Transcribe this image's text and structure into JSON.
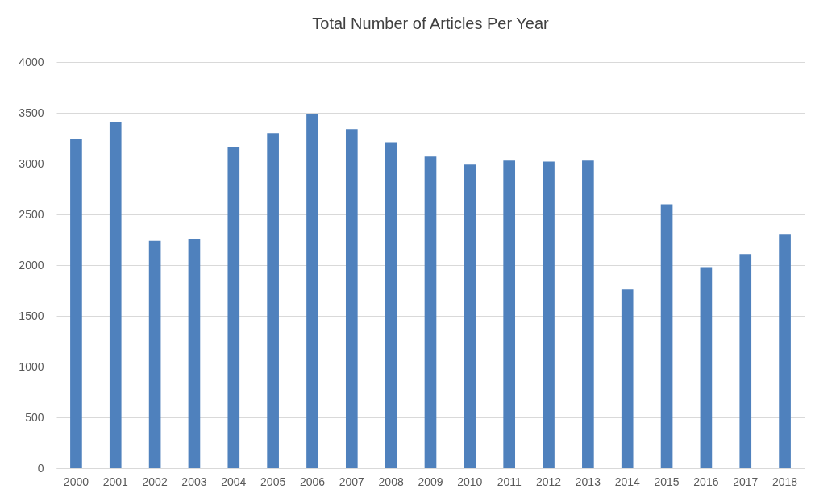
{
  "chart_data": {
    "type": "bar",
    "title": "Total Number of Articles Per Year",
    "categories": [
      "2000",
      "2001",
      "2002",
      "2003",
      "2004",
      "2005",
      "2006",
      "2007",
      "2008",
      "2009",
      "2010",
      "2011",
      "2012",
      "2013",
      "2014",
      "2015",
      "2016",
      "2017",
      "2018"
    ],
    "values": [
      3240,
      3410,
      2240,
      2260,
      3160,
      3300,
      3490,
      3340,
      3210,
      3070,
      2990,
      3030,
      3020,
      3030,
      1760,
      2600,
      1980,
      2110,
      2300
    ],
    "color": "#4f81bd",
    "ylim": [
      0,
      4000
    ],
    "yticks": [
      0,
      500,
      1000,
      1500,
      2000,
      2500,
      3000,
      3500,
      4000
    ],
    "grid": "y"
  }
}
